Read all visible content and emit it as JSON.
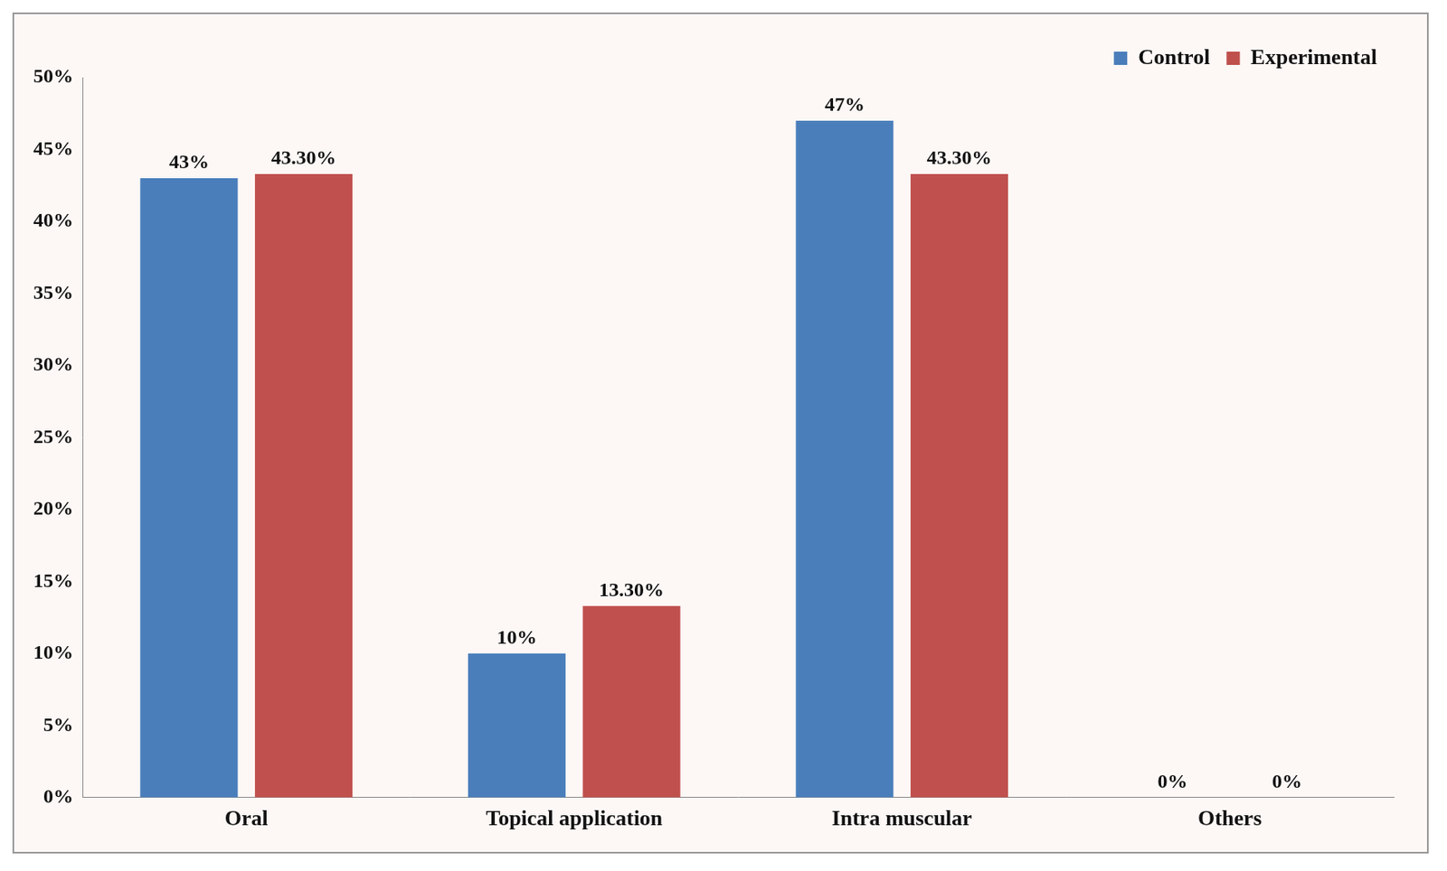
{
  "chart_data": {
    "type": "bar",
    "categories": [
      "Oral",
      "Topical application",
      "Intra muscular",
      "Others"
    ],
    "series": [
      {
        "name": "Control",
        "color": "#4a7ebb",
        "values": [
          43,
          10,
          47,
          0
        ],
        "value_labels": [
          "43%",
          "10%",
          "47%",
          "0%"
        ]
      },
      {
        "name": "Experimental",
        "color": "#c0504d",
        "values": [
          43.3,
          13.3,
          43.3,
          0
        ],
        "value_labels": [
          "43.30%",
          "13.30%",
          "43.30%",
          "0%"
        ]
      }
    ],
    "ylim": [
      0,
      50
    ],
    "yticks": [
      {
        "value": 0,
        "label": "0%"
      },
      {
        "value": 5,
        "label": "5%"
      },
      {
        "value": 10,
        "label": "10%"
      },
      {
        "value": 15,
        "label": "15%"
      },
      {
        "value": 20,
        "label": "20%"
      },
      {
        "value": 25,
        "label": "25%"
      },
      {
        "value": 30,
        "label": "30%"
      },
      {
        "value": 35,
        "label": "35%"
      },
      {
        "value": 40,
        "label": "40%"
      },
      {
        "value": 45,
        "label": "45%"
      },
      {
        "value": 50,
        "label": "50%"
      }
    ],
    "grid": false,
    "legend": "top-right",
    "data_labels": true
  }
}
